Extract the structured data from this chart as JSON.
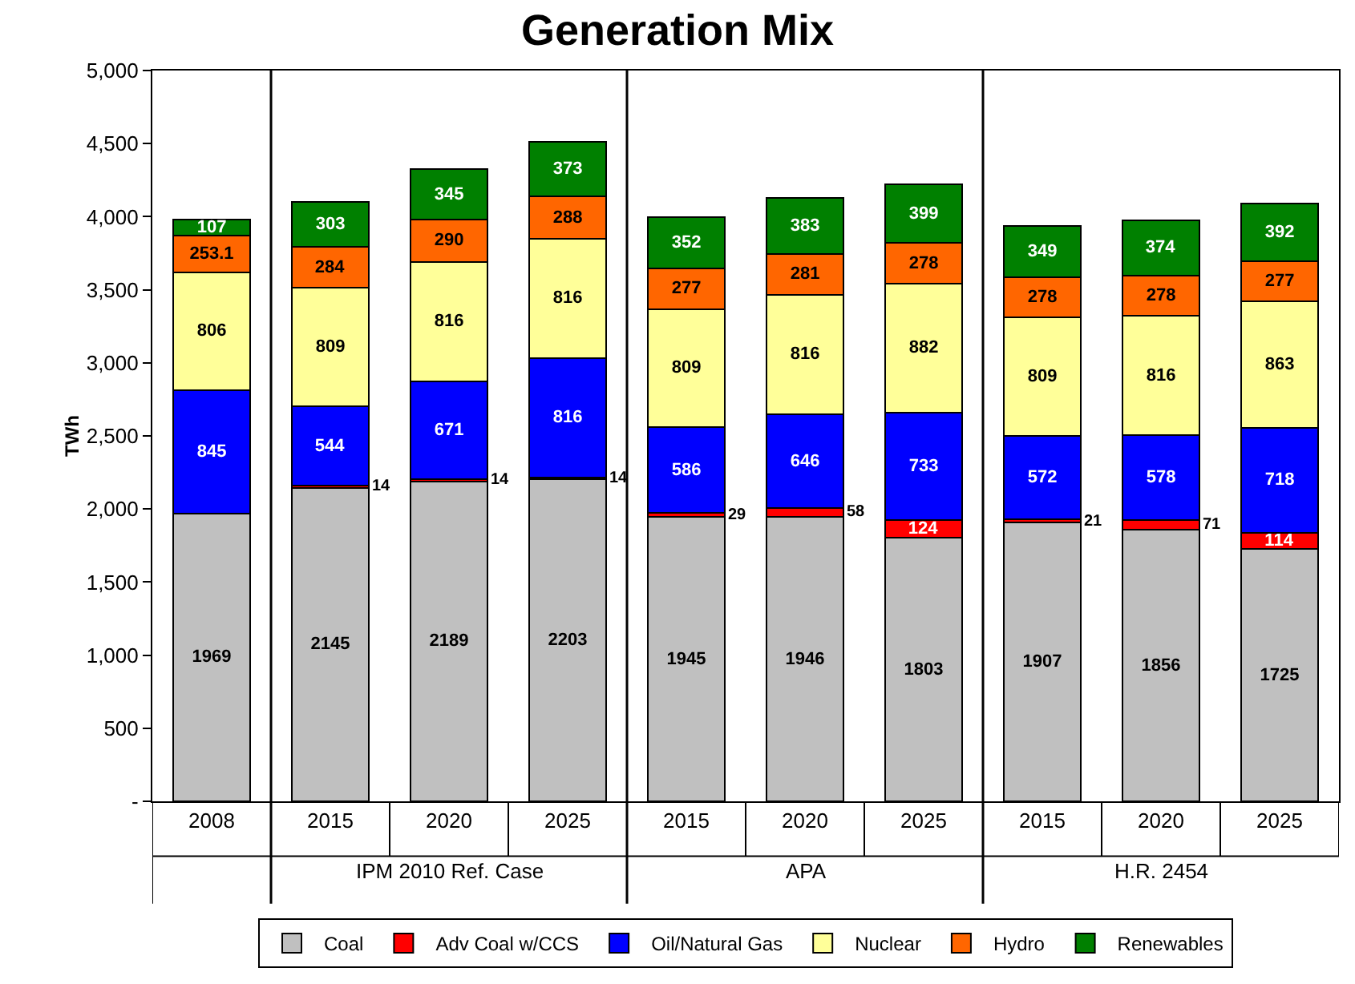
{
  "chart_data": {
    "type": "bar",
    "title": "Generation Mix",
    "ylabel": "TWh",
    "categories": [
      "2008",
      "2015",
      "2020",
      "2025",
      "2015",
      "2020",
      "2025",
      "2015",
      "2020",
      "2025"
    ],
    "annotations": [
      "IPM 2010 Ref. Case",
      "APA",
      "H.R. 2454"
    ],
    "stacked": true,
    "data_labels": true,
    "grid": false,
    "legend": "bottom",
    "ylim": [
      0,
      5000
    ],
    "yticks": [
      {
        "value": 0,
        "label": "-"
      },
      {
        "value": 500,
        "label": "500"
      },
      {
        "value": 1000,
        "label": "1,000"
      },
      {
        "value": 1500,
        "label": "1,500"
      },
      {
        "value": 2000,
        "label": "2,000"
      },
      {
        "value": 2500,
        "label": "2,500"
      },
      {
        "value": 3000,
        "label": "3,000"
      },
      {
        "value": 3500,
        "label": "3,500"
      },
      {
        "value": 4000,
        "label": "4,000"
      },
      {
        "value": 4500,
        "label": "4,500"
      },
      {
        "value": 5000,
        "label": "5,000"
      }
    ],
    "series": [
      {
        "name": "Coal",
        "color": "#c0c0c0",
        "values": [
          1969,
          2145,
          2189,
          2203,
          1945,
          1946,
          1803,
          1907,
          1856,
          1725
        ]
      },
      {
        "name": "Adv Coal w/CCS",
        "color": "#ff0000",
        "values": [
          null,
          14,
          14,
          14,
          29,
          58,
          124,
          21,
          71,
          114
        ]
      },
      {
        "name": "Oil/Natural Gas",
        "color": "#0000ff",
        "values": [
          845,
          544,
          671,
          816,
          586,
          646,
          733,
          572,
          578,
          718
        ]
      },
      {
        "name": "Nuclear",
        "color": "#ffff99",
        "values": [
          806,
          809,
          816,
          816,
          809,
          816,
          882,
          809,
          816,
          863
        ]
      },
      {
        "name": "Hydro",
        "color": "#ff6600",
        "values": [
          253.1,
          284,
          290,
          288,
          277,
          281,
          278,
          278,
          278,
          277
        ]
      },
      {
        "name": "Renewables",
        "color": "#008000",
        "values": [
          107,
          303,
          345,
          373,
          352,
          383,
          399,
          349,
          374,
          392
        ]
      }
    ]
  }
}
